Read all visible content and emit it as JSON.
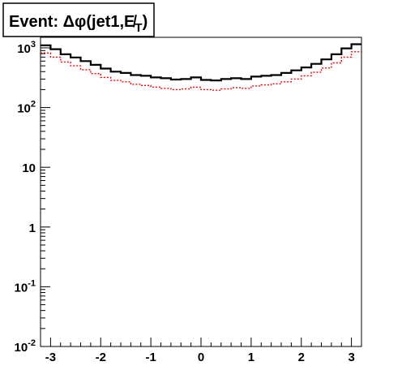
{
  "chart_data": {
    "type": "histogram",
    "title": "Event: Δφ(jet1,E̸",
    "title_subscript": "T",
    "title_close": ")",
    "y_scale": "log",
    "ylim": [
      0.01,
      1500
    ],
    "xlim": [
      -3.2,
      3.2
    ],
    "x_ticks": [
      {
        "value": -3,
        "label": "-3"
      },
      {
        "value": -2,
        "label": "-2"
      },
      {
        "value": -1,
        "label": "-1"
      },
      {
        "value": 0,
        "label": "0"
      },
      {
        "value": 1,
        "label": "1"
      },
      {
        "value": 2,
        "label": "2"
      },
      {
        "value": 3,
        "label": "3"
      }
    ],
    "y_ticks": [
      {
        "value": 0.01,
        "base": "10",
        "exp": "-2"
      },
      {
        "value": 0.1,
        "base": "10",
        "exp": "-1"
      },
      {
        "value": 1,
        "base": "1",
        "exp": ""
      },
      {
        "value": 10,
        "base": "10",
        "exp": ""
      },
      {
        "value": 100,
        "base": "10",
        "exp": "2"
      },
      {
        "value": 1000,
        "base": "10",
        "exp": "3"
      }
    ],
    "grid": false,
    "legend": "none",
    "bin_edges": [
      -3.2,
      -3.0,
      -2.8,
      -2.6,
      -2.4,
      -2.2,
      -2.0,
      -1.8,
      -1.6,
      -1.4,
      -1.2,
      -1.0,
      -0.8,
      -0.6,
      -0.4,
      -0.2,
      0.0,
      0.2,
      0.4,
      0.6,
      0.8,
      1.0,
      1.2,
      1.4,
      1.6,
      1.8,
      2.0,
      2.2,
      2.4,
      2.6,
      2.8,
      3.0,
      3.2
    ],
    "series": [
      {
        "color": "#000000",
        "style": "solid",
        "values": [
          1100,
          950,
          780,
          690,
          600,
          520,
          450,
          400,
          380,
          350,
          340,
          320,
          310,
          295,
          300,
          320,
          290,
          285,
          300,
          310,
          300,
          330,
          340,
          350,
          380,
          420,
          470,
          540,
          640,
          780,
          980,
          1150
        ]
      },
      {
        "color": "#ff0000",
        "style": "dashed",
        "values": [
          820,
          700,
          580,
          500,
          430,
          370,
          320,
          285,
          270,
          245,
          235,
          220,
          210,
          200,
          205,
          220,
          200,
          195,
          205,
          215,
          210,
          230,
          240,
          250,
          270,
          300,
          340,
          390,
          460,
          560,
          700,
          860
        ]
      }
    ]
  }
}
